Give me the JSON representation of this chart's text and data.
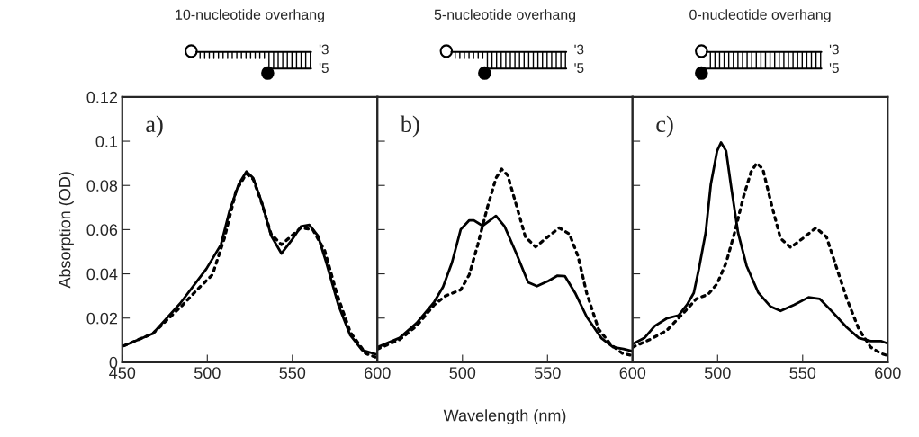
{
  "chart_data": [
    {
      "type": "line",
      "title": "10-nucleotide overhang",
      "ylabel": "Absorption (OD)",
      "annotations": [
        "a)",
        "'3",
        "'5"
      ],
      "xlim": [
        450,
        600
      ],
      "xticks": [
        450,
        500,
        550,
        600
      ],
      "ylim": [
        0,
        0.12
      ],
      "yticks": [
        {
          "value": 0,
          "label": "0"
        },
        0.02,
        0.04,
        0.06,
        0.08,
        0.1,
        0.12
      ],
      "grid": false,
      "legend": false,
      "series": [
        {
          "color": "#000000",
          "line_style": "solid",
          "x": [
            451,
            468,
            484,
            499.5,
            508,
            513,
            518.5,
            523,
            527,
            532,
            537.5,
            543.6,
            549.7,
            555,
            560,
            565,
            570,
            577,
            584,
            591,
            600
          ],
          "values": [
            0.0075,
            0.013,
            0.0266,
            0.0423,
            0.0532,
            0.0683,
            0.0806,
            0.0863,
            0.0833,
            0.0724,
            0.0573,
            0.0492,
            0.0553,
            0.0614,
            0.0621,
            0.0573,
            0.045,
            0.026,
            0.0123,
            0.0055,
            0.0034
          ]
        },
        {
          "color": "#000000",
          "line_style": "dotted",
          "x": [
            451,
            468,
            485.6,
            494,
            503,
            510,
            517,
            523,
            527,
            532,
            537.5,
            543.6,
            555,
            562,
            569,
            576,
            584,
            593,
            600
          ],
          "values": [
            0.0075,
            0.013,
            0.026,
            0.0328,
            0.0396,
            0.056,
            0.0778,
            0.0853,
            0.0828,
            0.072,
            0.058,
            0.0532,
            0.0608,
            0.06,
            0.0505,
            0.0314,
            0.0137,
            0.004,
            0.002
          ]
        }
      ]
    },
    {
      "type": "line",
      "title": "5-nucleotide overhang",
      "xlabel": "Wavelength (nm)",
      "annotations": [
        "b)",
        "'3",
        "'5"
      ],
      "xlim": [
        450,
        600
      ],
      "xticks": [
        {
          "value": 450,
          "label": null
        },
        500,
        550,
        600
      ],
      "ylim": [
        0,
        0.12
      ],
      "yticks": [
        0,
        0.02,
        0.04,
        0.06,
        0.08,
        0.1,
        0.12
      ],
      "tick_labels": "x",
      "grid": false,
      "legend": false,
      "series": [
        {
          "color": "#000000",
          "line_style": "solid",
          "x": [
            450,
            463,
            473,
            483.4,
            488.6,
            493.8,
            499,
            504,
            506.7,
            511.9,
            519.7,
            524.8,
            531.7,
            538.6,
            543.8,
            550.7,
            555.9,
            560.2,
            566.2,
            573.1,
            581.7,
            588.6,
            594.7,
            600
          ],
          "values": [
            0.0068,
            0.011,
            0.0177,
            0.0273,
            0.0341,
            0.045,
            0.0601,
            0.0642,
            0.0642,
            0.0617,
            0.0662,
            0.0614,
            0.0492,
            0.0362,
            0.0344,
            0.0369,
            0.0392,
            0.039,
            0.0314,
            0.0205,
            0.0109,
            0.0068,
            0.006,
            0.005
          ]
        },
        {
          "color": "#000000",
          "line_style": "dotted",
          "x": [
            450,
            463,
            473,
            483.4,
            490,
            499,
            504,
            509,
            514.5,
            519.7,
            523,
            526.6,
            531.7,
            537,
            543,
            549,
            556.9,
            562.9,
            568,
            573,
            580,
            587,
            594,
            600
          ],
          "values": [
            0.006,
            0.0102,
            0.0164,
            0.026,
            0.03,
            0.0328,
            0.0396,
            0.0532,
            0.0696,
            0.0833,
            0.0874,
            0.0846,
            0.071,
            0.0567,
            0.0522,
            0.056,
            0.0608,
            0.058,
            0.0478,
            0.0314,
            0.015,
            0.0082,
            0.004,
            0.003
          ]
        }
      ]
    },
    {
      "type": "line",
      "title": "0-nucleotide overhang",
      "annotations": [
        "c)",
        "'3",
        "'5"
      ],
      "xlim": [
        450,
        600
      ],
      "xticks": [
        {
          "value": 450,
          "label": null
        },
        500,
        550,
        600
      ],
      "ylim": [
        0,
        0.12
      ],
      "yticks": [
        0,
        0.02,
        0.04,
        0.06,
        0.08,
        0.1,
        0.12
      ],
      "tick_labels": "x",
      "grid": false,
      "legend": false,
      "series": [
        {
          "color": "#000000",
          "line_style": "solid",
          "x": [
            450,
            457,
            463,
            470,
            477,
            482,
            486,
            489,
            493,
            496,
            499.7,
            502,
            505,
            508,
            512,
            517,
            524,
            531,
            537,
            545,
            553.5,
            560,
            567,
            576,
            583,
            590,
            596,
            600
          ],
          "values": [
            0.0082,
            0.011,
            0.0164,
            0.0198,
            0.0212,
            0.026,
            0.0314,
            0.0423,
            0.0587,
            0.0805,
            0.0956,
            0.0994,
            0.0956,
            0.0792,
            0.0587,
            0.0437,
            0.0314,
            0.0253,
            0.0232,
            0.026,
            0.0294,
            0.0287,
            0.0232,
            0.0157,
            0.011,
            0.0096,
            0.0096,
            0.0085
          ]
        },
        {
          "color": "#000000",
          "line_style": "dotted",
          "x": [
            450,
            460,
            470,
            481,
            487.5,
            494.4,
            499.7,
            505,
            510,
            515.3,
            519.6,
            523,
            526.6,
            531.8,
            537,
            543,
            550,
            557.8,
            564,
            569,
            576,
            583,
            590,
            596,
            600
          ],
          "values": [
            0.0068,
            0.0102,
            0.0143,
            0.0232,
            0.0287,
            0.0307,
            0.0355,
            0.045,
            0.0587,
            0.0751,
            0.086,
            0.0901,
            0.0874,
            0.071,
            0.056,
            0.0519,
            0.056,
            0.0608,
            0.0567,
            0.045,
            0.0287,
            0.015,
            0.0068,
            0.004,
            0.003
          ]
        }
      ]
    }
  ]
}
